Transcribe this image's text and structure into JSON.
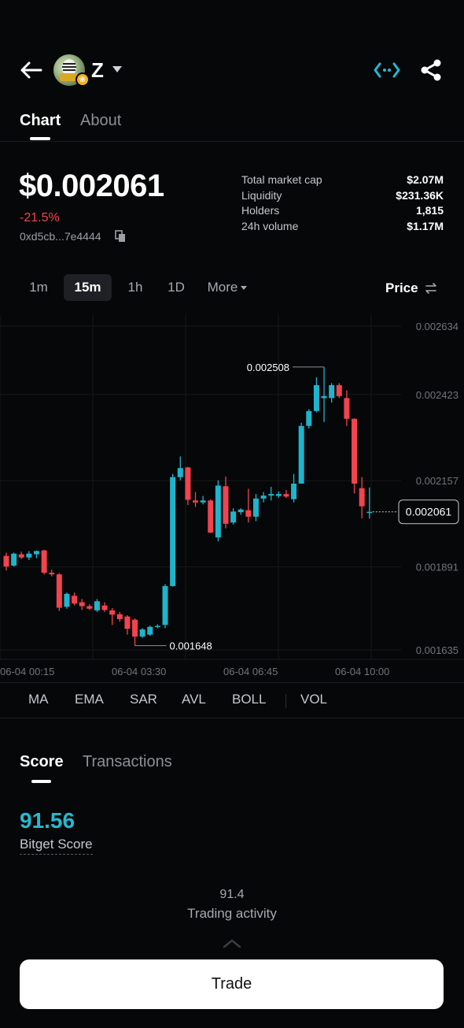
{
  "header": {
    "token_symbol": "Z",
    "avatar_badge": "❀"
  },
  "tabs": [
    {
      "label": "Chart",
      "active": true
    },
    {
      "label": "About",
      "active": false
    }
  ],
  "summary": {
    "price": "$0.002061",
    "change": "-21.5%",
    "address": "0xd5cb...7e4444",
    "stats": [
      {
        "label": "Total market cap",
        "value": "$2.07M"
      },
      {
        "label": "Liquidity",
        "value": "$231.36K"
      },
      {
        "label": "Holders",
        "value": "1,815"
      },
      {
        "label": "24h volume",
        "value": "$1.17M"
      }
    ]
  },
  "intervals": {
    "items": [
      "1m",
      "15m",
      "1h",
      "1D"
    ],
    "active": "15m",
    "more_label": "More",
    "price_toggle": "Price"
  },
  "chart_data": {
    "type": "candlestick",
    "y_ticks": [
      "0.002634",
      "0.002423",
      "0.002157",
      "0.001891",
      "0.001635"
    ],
    "ylim": [
      0.001635,
      0.002634
    ],
    "x_ticks": [
      "06-04 00:15",
      "06-04 03:30",
      "06-04 06:45",
      "06-04 10:00"
    ],
    "high_label": "0.002508",
    "low_label": "0.001648",
    "current_price": "0.002061",
    "colors": {
      "up": "#1fb4cc",
      "down": "#f2434f"
    },
    "candles": [
      {
        "o": 0.001925,
        "h": 0.001935,
        "l": 0.00188,
        "c": 0.001892
      },
      {
        "o": 0.001895,
        "h": 0.001935,
        "l": 0.001892,
        "c": 0.001932
      },
      {
        "o": 0.00193,
        "h": 0.001938,
        "l": 0.001915,
        "c": 0.00192
      },
      {
        "o": 0.00192,
        "h": 0.00194,
        "l": 0.001912,
        "c": 0.001932
      },
      {
        "o": 0.00193,
        "h": 0.001942,
        "l": 0.001918,
        "c": 0.00194
      },
      {
        "o": 0.001942,
        "h": 0.001944,
        "l": 0.001868,
        "c": 0.001873
      },
      {
        "o": 0.001873,
        "h": 0.001882,
        "l": 0.001862,
        "c": 0.001868
      },
      {
        "o": 0.001868,
        "h": 0.001872,
        "l": 0.001755,
        "c": 0.001765
      },
      {
        "o": 0.001768,
        "h": 0.001812,
        "l": 0.001762,
        "c": 0.001808
      },
      {
        "o": 0.001802,
        "h": 0.001812,
        "l": 0.001772,
        "c": 0.001778
      },
      {
        "o": 0.001782,
        "h": 0.001792,
        "l": 0.001758,
        "c": 0.00177
      },
      {
        "o": 0.00177,
        "h": 0.001776,
        "l": 0.001758,
        "c": 0.001762
      },
      {
        "o": 0.001757,
        "h": 0.001792,
        "l": 0.001752,
        "c": 0.001785
      },
      {
        "o": 0.001772,
        "h": 0.001782,
        "l": 0.001752,
        "c": 0.001758
      },
      {
        "o": 0.001757,
        "h": 0.001764,
        "l": 0.001712,
        "c": 0.001744
      },
      {
        "o": 0.001745,
        "h": 0.001752,
        "l": 0.001722,
        "c": 0.00173
      },
      {
        "o": 0.001738,
        "h": 0.001742,
        "l": 0.001682,
        "c": 0.0017
      },
      {
        "o": 0.001728,
        "h": 0.001732,
        "l": 0.001648,
        "c": 0.001676
      },
      {
        "o": 0.001676,
        "h": 0.001702,
        "l": 0.001672,
        "c": 0.001698
      },
      {
        "o": 0.001682,
        "h": 0.00171,
        "l": 0.001678,
        "c": 0.001706
      },
      {
        "o": 0.001707,
        "h": 0.001714,
        "l": 0.001702,
        "c": 0.001709
      },
      {
        "o": 0.001712,
        "h": 0.001838,
        "l": 0.001702,
        "c": 0.001832
      },
      {
        "o": 0.001832,
        "h": 0.002178,
        "l": 0.00183,
        "c": 0.002168
      },
      {
        "o": 0.002168,
        "h": 0.002232,
        "l": 0.002158,
        "c": 0.002196
      },
      {
        "o": 0.002198,
        "h": 0.0022,
        "l": 0.002082,
        "c": 0.002098
      },
      {
        "o": 0.002096,
        "h": 0.002122,
        "l": 0.002076,
        "c": 0.00209
      },
      {
        "o": 0.00209,
        "h": 0.00211,
        "l": 0.002084,
        "c": 0.002096
      },
      {
        "o": 0.002096,
        "h": 0.0021,
        "l": 0.001995,
        "c": 0.001997
      },
      {
        "o": 0.001982,
        "h": 0.002158,
        "l": 0.00197,
        "c": 0.002142
      },
      {
        "o": 0.00214,
        "h": 0.00217,
        "l": 0.00201,
        "c": 0.002024
      },
      {
        "o": 0.002028,
        "h": 0.002072,
        "l": 0.002022,
        "c": 0.002062
      },
      {
        "o": 0.00206,
        "h": 0.002072,
        "l": 0.002052,
        "c": 0.002068
      },
      {
        "o": 0.002066,
        "h": 0.002132,
        "l": 0.002028,
        "c": 0.002046
      },
      {
        "o": 0.002046,
        "h": 0.002116,
        "l": 0.002032,
        "c": 0.002102
      },
      {
        "o": 0.002102,
        "h": 0.002122,
        "l": 0.00209,
        "c": 0.002111
      },
      {
        "o": 0.002111,
        "h": 0.002138,
        "l": 0.002096,
        "c": 0.002116
      },
      {
        "o": 0.00211,
        "h": 0.002124,
        "l": 0.002104,
        "c": 0.002116
      },
      {
        "o": 0.002116,
        "h": 0.002128,
        "l": 0.002104,
        "c": 0.002108
      },
      {
        "o": 0.0021,
        "h": 0.002178,
        "l": 0.00209,
        "c": 0.002148
      },
      {
        "o": 0.002148,
        "h": 0.002336,
        "l": 0.002148,
        "c": 0.002326
      },
      {
        "o": 0.002326,
        "h": 0.002378,
        "l": 0.002318,
        "c": 0.002372
      },
      {
        "o": 0.002372,
        "h": 0.002476,
        "l": 0.002368,
        "c": 0.002452
      },
      {
        "o": 0.002412,
        "h": 0.002508,
        "l": 0.002338,
        "c": 0.002418
      },
      {
        "o": 0.002412,
        "h": 0.002458,
        "l": 0.002398,
        "c": 0.002452
      },
      {
        "o": 0.002452,
        "h": 0.002458,
        "l": 0.002412,
        "c": 0.002418
      },
      {
        "o": 0.002412,
        "h": 0.002436,
        "l": 0.002326,
        "c": 0.002348
      },
      {
        "o": 0.002348,
        "h": 0.00235,
        "l": 0.002118,
        "c": 0.002148
      },
      {
        "o": 0.002134,
        "h": 0.002168,
        "l": 0.002041,
        "c": 0.002078
      },
      {
        "o": 0.002061,
        "h": 0.002136,
        "l": 0.00204,
        "c": 0.002061
      }
    ]
  },
  "indicators": [
    "MA",
    "EMA",
    "SAR",
    "AVL",
    "BOLL",
    "VOL"
  ],
  "bottom_tabs": [
    {
      "label": "Score",
      "active": true
    },
    {
      "label": "Transactions",
      "active": false
    }
  ],
  "score": {
    "value": "91.56",
    "label": "Bitget Score",
    "activity_value": "91.4",
    "activity_label": "Trading activity"
  },
  "trade_button": "Trade"
}
